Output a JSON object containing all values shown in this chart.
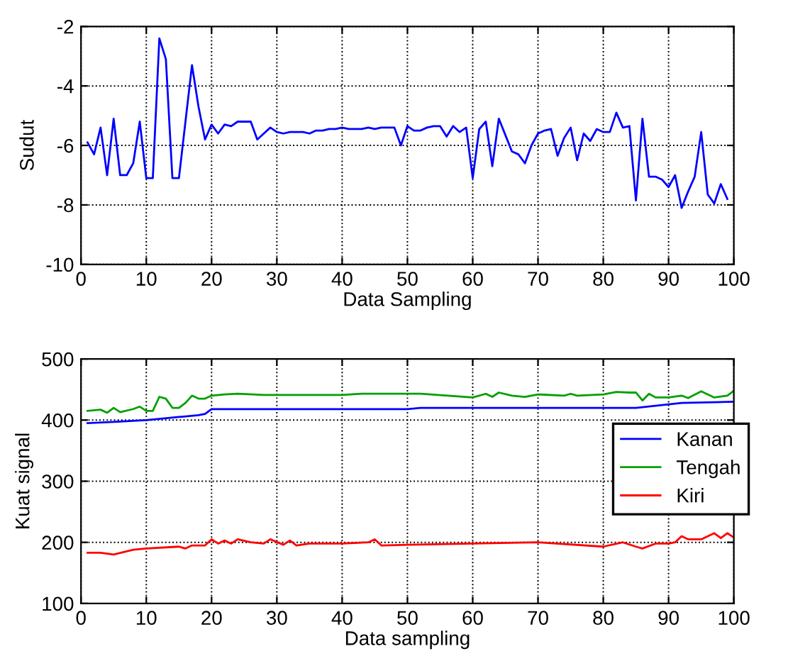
{
  "chart_data": [
    {
      "type": "line",
      "xlabel": "Data Sampling",
      "ylabel": "Sudut",
      "xlim": [
        0,
        100
      ],
      "ylim": [
        -10,
        -2
      ],
      "xticks": [
        0,
        10,
        20,
        30,
        40,
        50,
        60,
        70,
        80,
        90,
        100
      ],
      "yticks": [
        -10,
        -8,
        -6,
        -4,
        -2
      ],
      "grid": true,
      "line_style": "solid",
      "series": [
        {
          "color": "#0000ff",
          "x": [
            1,
            2,
            3,
            4,
            5,
            6,
            7,
            8,
            9,
            10,
            11,
            12,
            13,
            14,
            15,
            16,
            17,
            18,
            19,
            20,
            21,
            22,
            23,
            24,
            25,
            26,
            27,
            28,
            29,
            30,
            31,
            32,
            33,
            34,
            35,
            36,
            37,
            38,
            39,
            40,
            41,
            42,
            43,
            44,
            45,
            46,
            47,
            48,
            49,
            50,
            51,
            52,
            53,
            54,
            55,
            56,
            57,
            58,
            59,
            60,
            61,
            62,
            63,
            64,
            65,
            66,
            67,
            68,
            69,
            70,
            71,
            72,
            73,
            74,
            75,
            76,
            77,
            78,
            79,
            80,
            81,
            82,
            83,
            84,
            85,
            86,
            87,
            88,
            89,
            90,
            91,
            92,
            93,
            94,
            95,
            96,
            97,
            98,
            99
          ],
          "values": [
            -5.9,
            -6.3,
            -5.4,
            -7.0,
            -5.1,
            -7.0,
            -7.0,
            -6.6,
            -5.2,
            -7.1,
            -7.1,
            -2.4,
            -3.1,
            -7.1,
            -7.1,
            -5.2,
            -3.3,
            -4.7,
            -5.8,
            -5.3,
            -5.6,
            -5.3,
            -5.35,
            -5.2,
            -5.2,
            -5.2,
            -5.8,
            -5.6,
            -5.4,
            -5.55,
            -5.6,
            -5.55,
            -5.55,
            -5.55,
            -5.6,
            -5.5,
            -5.5,
            -5.45,
            -5.45,
            -5.4,
            -5.45,
            -5.45,
            -5.45,
            -5.4,
            -5.45,
            -5.4,
            -5.4,
            -5.4,
            -6.0,
            -5.35,
            -5.5,
            -5.5,
            -5.4,
            -5.35,
            -5.35,
            -5.7,
            -5.35,
            -5.55,
            -5.4,
            -7.1,
            -5.45,
            -5.2,
            -6.7,
            -5.1,
            -5.65,
            -6.2,
            -6.3,
            -6.6,
            -6.0,
            -5.6,
            -5.5,
            -5.45,
            -6.35,
            -5.75,
            -5.4,
            -6.5,
            -5.6,
            -5.85,
            -5.45,
            -5.55,
            -5.55,
            -4.9,
            -5.4,
            -5.35,
            -7.85,
            -5.1,
            -7.05,
            -7.05,
            -7.15,
            -7.4,
            -7.0,
            -8.1,
            -7.55,
            -7.05,
            -5.55,
            -7.65,
            -7.95,
            -7.3,
            -7.8
          ]
        }
      ]
    },
    {
      "type": "line",
      "xlabel": "Data sampling",
      "ylabel": "Kuat signal",
      "xlim": [
        0,
        100
      ],
      "ylim": [
        100,
        500
      ],
      "xticks": [
        0,
        10,
        20,
        30,
        40,
        50,
        60,
        70,
        80,
        90,
        100
      ],
      "yticks": [
        100,
        200,
        300,
        400,
        500
      ],
      "grid": true,
      "legend": "right",
      "series": [
        {
          "name": "Kanan",
          "color": "#0000ff",
          "x": [
            1,
            5,
            10,
            15,
            18,
            19,
            20,
            50,
            52,
            85,
            92,
            100
          ],
          "values": [
            395,
            397,
            400,
            405,
            408,
            410,
            418,
            418,
            420,
            420,
            428,
            430
          ]
        },
        {
          "name": "Tengah",
          "color": "#00a000",
          "x": [
            1,
            3,
            4,
            5,
            6,
            8,
            9,
            10,
            11,
            12,
            13,
            14,
            15,
            16,
            17,
            18,
            19,
            20,
            22,
            24,
            28,
            30,
            40,
            43,
            50,
            52,
            60,
            62,
            63,
            64,
            66,
            68,
            70,
            74,
            75,
            76,
            80,
            82,
            84,
            85,
            86,
            87,
            88,
            90,
            92,
            93,
            95,
            97,
            99,
            100
          ],
          "values": [
            415,
            417,
            412,
            420,
            413,
            418,
            422,
            415,
            415,
            438,
            435,
            420,
            420,
            428,
            440,
            435,
            435,
            440,
            442,
            443,
            441,
            441,
            441,
            443,
            443,
            443,
            437,
            443,
            438,
            445,
            440,
            438,
            442,
            440,
            443,
            440,
            442,
            446,
            445,
            445,
            432,
            443,
            437,
            437,
            440,
            436,
            447,
            437,
            440,
            448
          ]
        },
        {
          "name": "Kiri",
          "color": "#ff0000",
          "x": [
            1,
            3,
            5,
            8,
            10,
            15,
            16,
            17,
            19,
            20,
            21,
            22,
            23,
            24,
            26,
            28,
            29,
            31,
            32,
            33,
            35,
            40,
            44,
            45,
            46,
            50,
            60,
            70,
            80,
            83,
            85,
            86,
            88,
            90,
            91,
            92,
            93,
            95,
            97,
            98,
            99,
            100
          ],
          "values": [
            183,
            183,
            180,
            188,
            190,
            193,
            190,
            195,
            195,
            205,
            198,
            203,
            198,
            205,
            200,
            198,
            205,
            196,
            203,
            195,
            198,
            198,
            200,
            205,
            195,
            196,
            198,
            200,
            193,
            200,
            193,
            190,
            198,
            198,
            200,
            210,
            205,
            205,
            215,
            207,
            215,
            208
          ]
        }
      ]
    }
  ]
}
